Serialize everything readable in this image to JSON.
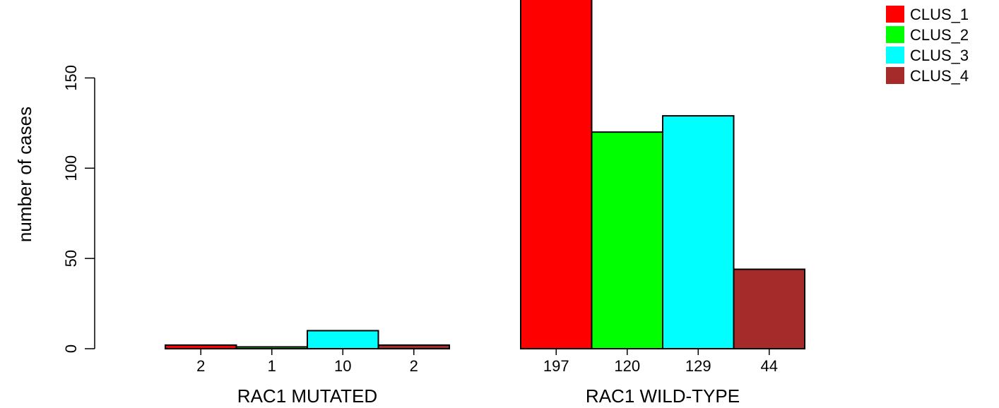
{
  "chart_data": {
    "type": "bar",
    "title": "",
    "xlabel": "",
    "ylabel": "number of cases",
    "ylim": [
      0,
      197
    ],
    "yticks": [
      0,
      50,
      100,
      150
    ],
    "grid": false,
    "legend_position": "top-right",
    "groups": [
      "RAC1 MUTATED",
      "RAC1 WILD-TYPE"
    ],
    "series": [
      {
        "name": "CLUS_1",
        "color": "#FF0000",
        "values": [
          2,
          197
        ]
      },
      {
        "name": "CLUS_2",
        "color": "#00FF00",
        "values": [
          1,
          120
        ]
      },
      {
        "name": "CLUS_3",
        "color": "#00FFFF",
        "values": [
          10,
          129
        ]
      },
      {
        "name": "CLUS_4",
        "color": "#A52A2A",
        "values": [
          2,
          44
        ]
      }
    ]
  }
}
